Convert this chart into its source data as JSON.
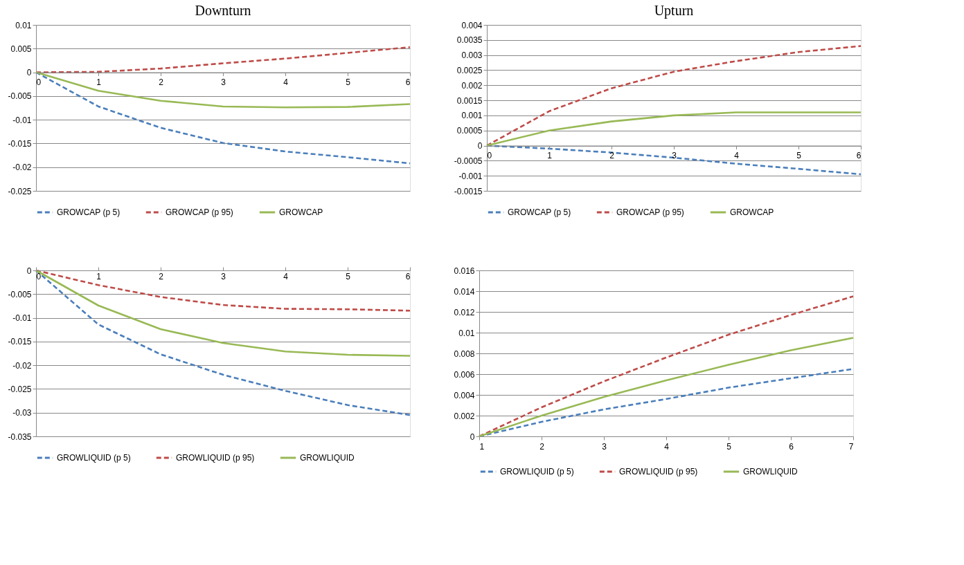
{
  "chart_data": [
    {
      "type": "line",
      "title": "Downturn",
      "x": [
        0,
        1,
        2,
        3,
        4,
        5,
        6
      ],
      "xlim": [
        0,
        6
      ],
      "xticks": [
        0,
        1,
        2,
        3,
        4,
        5,
        6
      ],
      "ylim": [
        -0.025,
        0.01
      ],
      "yticks": [
        -0.025,
        -0.02,
        -0.015,
        -0.01,
        -0.005,
        0,
        0.005,
        0.01
      ],
      "grid": "y",
      "legend": "bottom",
      "series": [
        {
          "name": "GROWCAP (p 5)",
          "color": "#4a7ebb",
          "line_style": "dashed",
          "values": [
            0,
            -0.0072,
            -0.0117,
            -0.0149,
            -0.0167,
            -0.0179,
            -0.0192
          ]
        },
        {
          "name": "GROWCAP (p 95)",
          "color": "#be4b48",
          "line_style": "dashed",
          "values": [
            0,
            0.0001,
            0.0008,
            0.0019,
            0.0029,
            0.0041,
            0.0053
          ]
        },
        {
          "name": "GROWCAP",
          "color": "#98b954",
          "line_style": "solid",
          "values": [
            0,
            -0.0039,
            -0.006,
            -0.0072,
            -0.0074,
            -0.0073,
            -0.0067
          ]
        }
      ]
    },
    {
      "type": "line",
      "title": "Upturn",
      "x": [
        0,
        1,
        2,
        3,
        4,
        5,
        6
      ],
      "xlim": [
        0,
        6
      ],
      "xticks": [
        0,
        1,
        2,
        3,
        4,
        5,
        6
      ],
      "ylim": [
        -0.0015,
        0.004
      ],
      "yticks": [
        -0.0015,
        -0.001,
        -0.0005,
        0,
        0.0005,
        0.001,
        0.0015,
        0.002,
        0.0025,
        0.003,
        0.0035,
        0.004
      ],
      "grid": "y",
      "legend": "bottom",
      "series": [
        {
          "name": "GROWCAP (p 5)",
          "color": "#4a7ebb",
          "line_style": "dashed",
          "values": [
            0,
            -0.0001,
            -0.00023,
            -0.0004,
            -0.0006,
            -0.00077,
            -0.00095
          ]
        },
        {
          "name": "GROWCAP (p 95)",
          "color": "#be4b48",
          "line_style": "dashed",
          "values": [
            0,
            0.00114,
            0.0019,
            0.00245,
            0.0028,
            0.0031,
            0.0033
          ]
        },
        {
          "name": "GROWCAP",
          "color": "#98b954",
          "line_style": "solid",
          "values": [
            0,
            0.0005,
            0.0008,
            0.001,
            0.0011,
            0.0011,
            0.0011
          ]
        }
      ]
    },
    {
      "type": "line",
      "x": [
        0,
        1,
        2,
        3,
        4,
        5,
        6
      ],
      "xlim": [
        0,
        6
      ],
      "xticks": [
        0,
        1,
        2,
        3,
        4,
        5,
        6
      ],
      "ylim": [
        -0.035,
        0
      ],
      "yticks": [
        -0.035,
        -0.03,
        -0.025,
        -0.02,
        -0.015,
        -0.01,
        -0.005,
        0
      ],
      "grid": "y",
      "legend": "bottom",
      "series": [
        {
          "name": "GROWLIQUID (p 5)",
          "color": "#4a7ebb",
          "line_style": "dashed",
          "values": [
            0,
            -0.0114,
            -0.0177,
            -0.022,
            -0.0254,
            -0.0284,
            -0.0305
          ]
        },
        {
          "name": "GROWLIQUID (p 95)",
          "color": "#be4b48",
          "line_style": "dashed",
          "values": [
            0,
            -0.0031,
            -0.0056,
            -0.0073,
            -0.0081,
            -0.0082,
            -0.0085
          ]
        },
        {
          "name": "GROWLIQUID",
          "color": "#98b954",
          "line_style": "solid",
          "values": [
            0,
            -0.0074,
            -0.0124,
            -0.0153,
            -0.0171,
            -0.0178,
            -0.018
          ]
        }
      ]
    },
    {
      "type": "line",
      "x": [
        1,
        2,
        3,
        4,
        5,
        6,
        7
      ],
      "xlim": [
        1,
        7
      ],
      "xticks": [
        1,
        2,
        3,
        4,
        5,
        6,
        7
      ],
      "ylim": [
        0,
        0.016
      ],
      "yticks": [
        0,
        0.002,
        0.004,
        0.006,
        0.008,
        0.01,
        0.012,
        0.014,
        0.016
      ],
      "grid": "y",
      "legend": "bottom",
      "series": [
        {
          "name": "GROWLIQUID (p 5)",
          "color": "#4a7ebb",
          "line_style": "dashed",
          "values": [
            0,
            0.0014,
            0.0026,
            0.0036,
            0.0047,
            0.0056,
            0.0065
          ]
        },
        {
          "name": "GROWLIQUID (p 95)",
          "color": "#be4b48",
          "line_style": "dashed",
          "values": [
            0,
            0.0028,
            0.0053,
            0.0076,
            0.0098,
            0.0117,
            0.0135
          ]
        },
        {
          "name": "GROWLIQUID",
          "color": "#98b954",
          "line_style": "solid",
          "values": [
            0,
            0.002,
            0.0038,
            0.0054,
            0.0069,
            0.0083,
            0.0095
          ]
        }
      ]
    }
  ]
}
